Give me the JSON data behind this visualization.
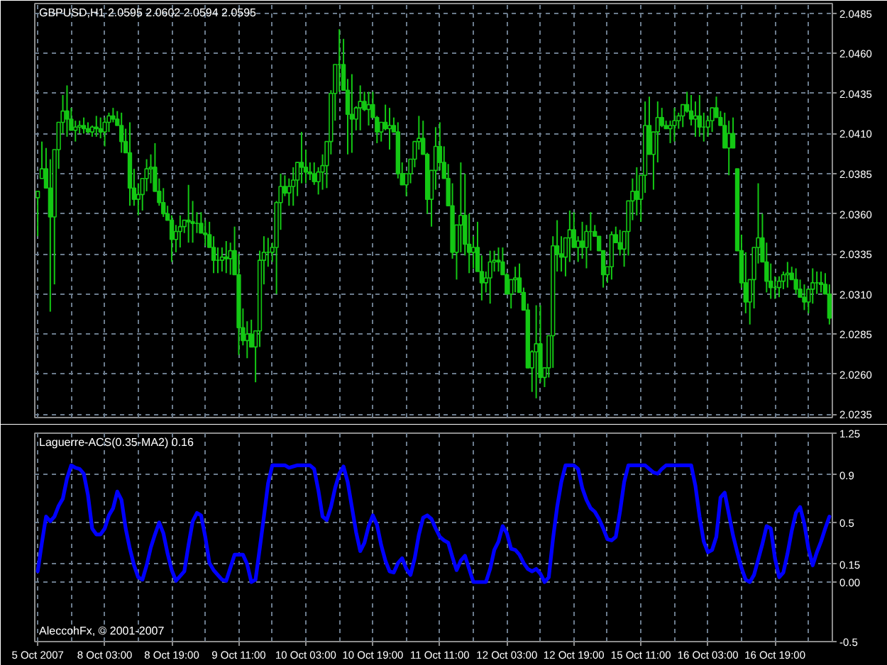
{
  "chart_data": [
    {
      "type": "candlestick",
      "title": "GBPUSD,H1 2.0595 2.0602 2.0594 2.0595",
      "color": "#14c814",
      "categories": [
        null,
        null,
        null,
        null,
        null,
        null,
        null,
        null,
        null,
        null,
        null,
        null,
        null,
        null,
        null,
        null,
        null,
        null,
        null,
        null,
        null,
        null,
        null,
        null,
        null,
        null,
        null,
        null,
        null,
        null,
        null,
        null,
        null,
        null,
        null,
        null,
        null,
        null,
        null,
        null,
        null,
        null,
        null,
        null,
        null,
        null,
        null,
        null,
        null,
        null,
        null,
        null,
        null,
        null,
        null,
        null,
        null,
        null,
        null,
        null,
        null,
        null,
        null,
        null,
        null,
        null,
        null,
        null,
        null,
        null,
        null,
        null,
        null,
        null,
        null,
        null,
        null,
        null,
        null,
        null,
        null,
        null,
        null,
        null,
        null,
        null,
        null,
        null,
        null,
        null,
        null,
        null,
        null,
        null,
        null,
        null,
        null,
        null,
        null,
        null,
        null,
        null,
        null,
        null,
        null,
        null,
        null,
        null,
        null,
        null,
        null,
        null,
        null,
        null,
        null,
        null,
        null,
        null,
        null,
        null,
        null,
        null,
        null,
        null,
        null,
        null,
        null,
        null,
        null,
        null,
        null,
        null,
        null,
        null,
        null,
        null,
        null,
        null,
        null,
        null,
        null,
        null,
        null,
        null,
        null,
        null,
        null,
        null,
        null,
        null,
        null,
        null,
        null,
        null,
        null,
        null,
        null,
        null,
        null,
        null,
        null,
        null,
        null,
        null,
        null,
        null,
        null,
        null,
        null,
        null,
        null,
        null,
        null,
        null,
        null,
        null,
        null,
        null,
        null,
        null,
        null,
        null,
        null,
        null,
        null,
        null,
        null,
        null,
        null,
        null
      ],
      "ohlc": [
        [
          2.037,
          2.0374,
          2.0346,
          2.0374
        ],
        [
          2.0382,
          2.0405,
          2.0382,
          2.0388
        ],
        [
          2.0388,
          2.0401,
          2.0376,
          2.0376
        ],
        [
          2.0376,
          2.0394,
          2.0299,
          2.0358
        ],
        [
          2.0358,
          2.04,
          2.0316,
          2.04
        ],
        [
          2.04,
          2.0417,
          2.0388,
          2.0417
        ],
        [
          2.0417,
          2.0434,
          2.041,
          2.0424
        ],
        [
          2.0424,
          2.044,
          2.0408,
          2.0419
        ],
        [
          2.0419,
          2.0426,
          2.0412,
          2.0412
        ],
        [
          2.0412,
          2.0418,
          2.0405,
          2.0414
        ],
        [
          2.0414,
          2.0418,
          2.041,
          2.0415
        ],
        [
          2.0415,
          2.042,
          2.041,
          2.0413
        ],
        [
          2.0413,
          2.0417,
          2.041,
          2.0411
        ],
        [
          2.0411,
          2.0415,
          2.0408,
          2.0414
        ],
        [
          2.0414,
          2.0421,
          2.0408,
          2.0413
        ],
        [
          2.0413,
          2.042,
          2.0407,
          2.0411
        ],
        [
          2.0411,
          2.042,
          2.0402,
          2.0417
        ],
        [
          2.0417,
          2.0423,
          2.0411,
          2.0421
        ],
        [
          2.0421,
          2.0426,
          2.0417,
          2.0419
        ],
        [
          2.0419,
          2.0424,
          2.0415,
          2.0415
        ],
        [
          2.0415,
          2.0423,
          2.0398,
          2.0405
        ],
        [
          2.0405,
          2.0413,
          2.0398,
          2.0398
        ],
        [
          2.0398,
          2.0417,
          2.0365,
          2.0376
        ],
        [
          2.0376,
          2.0388,
          2.0365,
          2.0369
        ],
        [
          2.0369,
          2.0379,
          2.0359,
          2.0372
        ],
        [
          2.0372,
          2.0382,
          2.0362,
          2.0382
        ],
        [
          2.0382,
          2.0394,
          2.0374,
          2.0388
        ],
        [
          2.0388,
          2.0397,
          2.0379,
          2.0389
        ],
        [
          2.0389,
          2.0404,
          2.0374,
          2.0374
        ],
        [
          2.0374,
          2.0382,
          2.0365,
          2.0367
        ],
        [
          2.0367,
          2.0376,
          2.0358,
          2.036
        ],
        [
          2.036,
          2.0365,
          2.0356,
          2.0356
        ],
        [
          2.0356,
          2.0359,
          2.033,
          2.0344
        ],
        [
          2.0344,
          2.0353,
          2.0336,
          2.0349
        ],
        [
          2.0349,
          2.0359,
          2.0339,
          2.0352
        ],
        [
          2.0352,
          2.0356,
          2.0348,
          2.0356
        ],
        [
          2.0356,
          2.0378,
          2.0342,
          2.0355
        ],
        [
          2.0355,
          2.0368,
          2.0342,
          2.0354
        ],
        [
          2.0354,
          2.0361,
          2.0348,
          2.0354
        ],
        [
          2.0354,
          2.0361,
          2.0348,
          2.0348
        ],
        [
          2.0348,
          2.0356,
          2.034,
          2.0347
        ],
        [
          2.0347,
          2.0355,
          2.0339,
          2.0339
        ],
        [
          2.0339,
          2.0346,
          2.0323,
          2.0331
        ],
        [
          2.0331,
          2.0339,
          2.0323,
          2.0331
        ],
        [
          2.0331,
          2.0339,
          2.0324,
          2.0333
        ],
        [
          2.0333,
          2.0343,
          2.0323,
          2.0332
        ],
        [
          2.0332,
          2.0342,
          2.0322,
          2.0337
        ],
        [
          2.0337,
          2.0352,
          2.0322,
          2.0322
        ],
        [
          2.0322,
          2.0335,
          2.0272,
          2.0289
        ],
        [
          2.0289,
          2.0301,
          2.0278,
          2.0281
        ],
        [
          2.0281,
          2.0293,
          2.027,
          2.0285
        ],
        [
          2.0285,
          2.0294,
          2.0277,
          2.0277
        ],
        [
          2.0277,
          2.0287,
          2.0255,
          2.0287
        ],
        [
          2.0287,
          2.0337,
          2.0277,
          2.0331
        ],
        [
          2.0331,
          2.0346,
          2.0316,
          2.0336
        ],
        [
          2.0336,
          2.0345,
          2.0327,
          2.0336
        ],
        [
          2.0336,
          2.0342,
          2.033,
          2.0339
        ],
        [
          2.0339,
          2.0368,
          2.031,
          2.0367
        ],
        [
          2.0367,
          2.0385,
          2.035,
          2.0377
        ],
        [
          2.0377,
          2.0384,
          2.0371,
          2.0373
        ],
        [
          2.0373,
          2.0382,
          2.0365,
          2.0377
        ],
        [
          2.0377,
          2.0389,
          2.0365,
          2.0381
        ],
        [
          2.0381,
          2.0392,
          2.0371,
          2.0392
        ],
        [
          2.0392,
          2.0411,
          2.0379,
          2.0389
        ],
        [
          2.0389,
          2.04,
          2.0379,
          2.0386
        ],
        [
          2.0386,
          2.0392,
          2.0381,
          2.0385
        ],
        [
          2.0385,
          2.0392,
          2.0378,
          2.038
        ],
        [
          2.038,
          2.0389,
          2.0372,
          2.0386
        ],
        [
          2.0386,
          2.0397,
          2.0375,
          2.039
        ],
        [
          2.039,
          2.0405,
          2.0376,
          2.0405
        ],
        [
          2.0405,
          2.0437,
          2.0397,
          2.0435
        ],
        [
          2.0435,
          2.0453,
          2.0418,
          2.0453
        ],
        [
          2.0453,
          2.0475,
          2.0436,
          2.0453
        ],
        [
          2.0453,
          2.0469,
          2.0437,
          2.0437
        ],
        [
          2.0437,
          2.0444,
          2.0397,
          2.0422
        ],
        [
          2.0422,
          2.0447,
          2.0398,
          2.0419
        ],
        [
          2.0419,
          2.0427,
          2.0412,
          2.0426
        ],
        [
          2.0426,
          2.044,
          2.0412,
          2.043
        ],
        [
          2.043,
          2.0436,
          2.0424,
          2.0425
        ],
        [
          2.0425,
          2.0436,
          2.0415,
          2.0428
        ],
        [
          2.0428,
          2.0436,
          2.042,
          2.042
        ],
        [
          2.042,
          2.0421,
          2.0404,
          2.0411
        ],
        [
          2.0411,
          2.0417,
          2.0405,
          2.0417
        ],
        [
          2.0417,
          2.0428,
          2.0412,
          2.0413
        ],
        [
          2.0413,
          2.0426,
          2.04,
          2.0415
        ],
        [
          2.0415,
          2.042,
          2.0411,
          2.0411
        ],
        [
          2.0411,
          2.0417,
          2.0382,
          2.0385
        ],
        [
          2.0385,
          2.0392,
          2.0378,
          2.0378
        ],
        [
          2.0378,
          2.0385,
          2.0371,
          2.0385
        ],
        [
          2.0385,
          2.0394,
          2.0379,
          2.0394
        ],
        [
          2.0394,
          2.0405,
          2.0389,
          2.0405
        ],
        [
          2.0405,
          2.0421,
          2.04,
          2.0407
        ],
        [
          2.0407,
          2.0418,
          2.0397,
          2.0397
        ],
        [
          2.0397,
          2.0398,
          2.036,
          2.0369
        ],
        [
          2.0369,
          2.0387,
          2.0352,
          2.0387
        ],
        [
          2.0387,
          2.0414,
          2.0375,
          2.0402
        ],
        [
          2.0402,
          2.0417,
          2.0387,
          2.0392
        ],
        [
          2.0392,
          2.0402,
          2.0382,
          2.0382
        ],
        [
          2.0382,
          2.0391,
          2.0365,
          2.0365
        ],
        [
          2.0365,
          2.0379,
          2.0332,
          2.0336
        ],
        [
          2.0336,
          2.0353,
          2.0319,
          2.0353
        ],
        [
          2.0353,
          2.0392,
          2.0336,
          2.0359
        ],
        [
          2.0359,
          2.0385,
          2.0334,
          2.0341
        ],
        [
          2.0341,
          2.036,
          2.0323,
          2.0336
        ],
        [
          2.0336,
          2.0346,
          2.0326,
          2.0339
        ],
        [
          2.0339,
          2.0355,
          2.0324,
          2.0324
        ],
        [
          2.0324,
          2.0334,
          2.0306,
          2.0317
        ],
        [
          2.0317,
          2.0324,
          2.0311,
          2.032
        ],
        [
          2.032,
          2.0337,
          2.0304,
          2.033
        ],
        [
          2.033,
          2.0337,
          2.0324,
          2.0331
        ],
        [
          2.0331,
          2.0339,
          2.0324,
          2.033
        ],
        [
          2.033,
          2.0339,
          2.0322,
          2.0322
        ],
        [
          2.0322,
          2.0323,
          2.031,
          2.031
        ],
        [
          2.031,
          2.0319,
          2.0301,
          2.0319
        ],
        [
          2.0319,
          2.0327,
          2.0311,
          2.032
        ],
        [
          2.032,
          2.0329,
          2.0311,
          2.0311
        ],
        [
          2.0311,
          2.0314,
          2.03,
          2.03
        ],
        [
          2.03,
          2.0304,
          2.0264,
          2.0264
        ],
        [
          2.0264,
          2.0275,
          2.0249,
          2.0274
        ],
        [
          2.0274,
          2.0303,
          2.0245,
          2.0279
        ],
        [
          2.0279,
          2.0303,
          2.0255,
          2.0258
        ],
        [
          2.0258,
          2.0264,
          2.0252,
          2.0264
        ],
        [
          2.0264,
          2.0284,
          2.0258,
          2.0284
        ],
        [
          2.0284,
          2.0346,
          2.0264,
          2.034
        ],
        [
          2.034,
          2.0356,
          2.0324,
          2.0335
        ],
        [
          2.0335,
          2.0346,
          2.0324,
          2.0333
        ],
        [
          2.0333,
          2.0345,
          2.0321,
          2.0345
        ],
        [
          2.0345,
          2.0362,
          2.033,
          2.035
        ],
        [
          2.035,
          2.0361,
          2.0339,
          2.0339
        ],
        [
          2.0339,
          2.0346,
          2.033,
          2.0343
        ],
        [
          2.0343,
          2.0355,
          2.0332,
          2.0339
        ],
        [
          2.0339,
          2.0353,
          2.0326,
          2.0349
        ],
        [
          2.0349,
          2.0361,
          2.0337,
          2.0349
        ],
        [
          2.0349,
          2.0353,
          2.0346,
          2.0346
        ],
        [
          2.0346,
          2.0346,
          2.0337,
          2.0337
        ],
        [
          2.0337,
          2.0337,
          2.0314,
          2.0322
        ],
        [
          2.0322,
          2.0327,
          2.0317,
          2.0327
        ],
        [
          2.0327,
          2.0349,
          2.0319,
          2.0347
        ],
        [
          2.0347,
          2.0352,
          2.0342,
          2.0342
        ],
        [
          2.0342,
          2.035,
          2.0334,
          2.0338
        ],
        [
          2.0338,
          2.0349,
          2.0327,
          2.0349
        ],
        [
          2.0349,
          2.0368,
          2.0334,
          2.0368
        ],
        [
          2.0368,
          2.0382,
          2.0356,
          2.0374
        ],
        [
          2.0374,
          2.0389,
          2.0359,
          2.0369
        ],
        [
          2.0369,
          2.0384,
          2.0355,
          2.0384
        ],
        [
          2.0384,
          2.043,
          2.0373,
          2.0415
        ],
        [
          2.0415,
          2.0433,
          2.0397,
          2.0397
        ],
        [
          2.0397,
          2.0411,
          2.0375,
          2.0411
        ],
        [
          2.0411,
          2.043,
          2.0392,
          2.042
        ],
        [
          2.042,
          2.0426,
          2.0414,
          2.0415
        ],
        [
          2.0415,
          2.0418,
          2.0413,
          2.0413
        ],
        [
          2.0413,
          2.0418,
          2.0404,
          2.0415
        ],
        [
          2.0415,
          2.0426,
          2.0405,
          2.0418
        ],
        [
          2.0418,
          2.0423,
          2.0413,
          2.0421
        ],
        [
          2.0421,
          2.0428,
          2.0414,
          2.0428
        ],
        [
          2.0428,
          2.0436,
          2.0423,
          2.0424
        ],
        [
          2.0424,
          2.0434,
          2.0415,
          2.0419
        ],
        [
          2.0419,
          2.043,
          2.0408,
          2.0421
        ],
        [
          2.0421,
          2.0434,
          2.0408,
          2.0414
        ],
        [
          2.0414,
          2.0423,
          2.0405,
          2.0414
        ],
        [
          2.0414,
          2.0421,
          2.0408,
          2.0418
        ],
        [
          2.0418,
          2.0426,
          2.0411,
          2.0426
        ],
        [
          2.0426,
          2.0433,
          2.042,
          2.042
        ],
        [
          2.042,
          2.0424,
          2.0415,
          2.0415
        ],
        [
          2.0415,
          2.0423,
          2.0401,
          2.0401
        ],
        [
          2.0401,
          2.0418,
          2.0384,
          2.041
        ],
        [
          2.041,
          2.042,
          2.0401,
          2.0401
        ],
        [
          2.0388,
          2.0388,
          2.0337,
          2.0337
        ],
        [
          2.0337,
          2.0347,
          2.0314,
          2.0317
        ],
        [
          2.0317,
          2.0336,
          2.0298,
          2.0305
        ],
        [
          2.0305,
          2.0319,
          2.0291,
          2.0319
        ],
        [
          2.0319,
          2.0339,
          2.0301,
          2.0339
        ],
        [
          2.0339,
          2.0379,
          2.0329,
          2.0345
        ],
        [
          2.0345,
          2.036,
          2.033,
          2.033
        ],
        [
          2.033,
          2.0342,
          2.0311,
          2.0318
        ],
        [
          2.0318,
          2.0329,
          2.0307,
          2.0314
        ],
        [
          2.0314,
          2.0321,
          2.0307,
          2.0314
        ],
        [
          2.0314,
          2.0321,
          2.0308,
          2.0318
        ],
        [
          2.0318,
          2.0324,
          2.0313,
          2.0322
        ],
        [
          2.0322,
          2.033,
          2.0314,
          2.0323
        ],
        [
          2.0323,
          2.0327,
          2.0319,
          2.0319
        ],
        [
          2.0319,
          2.0326,
          2.031,
          2.0313
        ],
        [
          2.0313,
          2.0319,
          2.0308,
          2.0308
        ],
        [
          2.0308,
          2.0316,
          2.03,
          2.0305
        ],
        [
          2.0305,
          2.0313,
          2.0298,
          2.0313
        ],
        [
          2.0313,
          2.0326,
          2.0304,
          2.0317
        ],
        [
          2.0317,
          2.0324,
          2.031,
          2.0317
        ],
        [
          2.0317,
          2.0324,
          2.0311,
          2.0316
        ],
        [
          2.0316,
          2.0323,
          2.031,
          2.031
        ],
        [
          2.031,
          2.0316,
          2.0291,
          2.0295
        ]
      ],
      "ylim": [
        2.0233,
        2.0491
      ],
      "yticks": [
        2.0485,
        {
          "value": 2.046,
          "label": "2.0460"
        },
        2.0435,
        {
          "value": 2.041,
          "label": "2.0410"
        },
        2.0385,
        {
          "value": 2.036,
          "label": "2.0360"
        },
        2.0335,
        {
          "value": 2.031,
          "label": "2.0310"
        },
        2.0285,
        {
          "value": 2.026,
          "label": "2.0260"
        },
        2.0235
      ],
      "grid": true,
      "tick_labels": "y"
    },
    {
      "type": "line",
      "title": "Laguerre-ACS(0.35-MA2) 0.16",
      "categories": [
        "5 Oct 2007",
        null,
        null,
        null,
        null,
        null,
        null,
        null,
        null,
        null,
        null,
        null,
        null,
        null,
        null,
        null,
        "8 Oct 03:00",
        null,
        null,
        null,
        null,
        null,
        null,
        null,
        null,
        null,
        null,
        null,
        null,
        null,
        null,
        null,
        "8 Oct 19:00",
        null,
        null,
        null,
        null,
        null,
        null,
        null,
        null,
        null,
        null,
        null,
        null,
        null,
        null,
        null,
        "9 Oct 11:00",
        null,
        null,
        null,
        null,
        null,
        null,
        null,
        null,
        null,
        null,
        null,
        null,
        null,
        null,
        null,
        "10 Oct 03:00",
        null,
        null,
        null,
        null,
        null,
        null,
        null,
        null,
        null,
        null,
        null,
        null,
        null,
        null,
        null,
        "10 Oct 19:00",
        null,
        null,
        null,
        null,
        null,
        null,
        null,
        null,
        null,
        null,
        null,
        null,
        null,
        null,
        null,
        "11 Oct 11:00",
        null,
        null,
        null,
        null,
        null,
        null,
        null,
        null,
        null,
        null,
        null,
        null,
        null,
        null,
        null,
        "12 Oct 03:00",
        null,
        null,
        null,
        null,
        null,
        null,
        null,
        null,
        null,
        null,
        null,
        null,
        null,
        null,
        null,
        "12 Oct 19:00",
        null,
        null,
        null,
        null,
        null,
        null,
        null,
        null,
        null,
        null,
        null,
        null,
        null,
        null,
        null,
        "15 Oct 11:00",
        null,
        null,
        null,
        null,
        null,
        null,
        null,
        null,
        null,
        null,
        null,
        null,
        null,
        null,
        null,
        "16 Oct 03:00",
        null,
        null,
        null,
        null,
        null,
        null,
        null,
        null,
        null,
        null,
        null,
        null,
        null,
        null,
        null,
        "16 Oct 19:00",
        null,
        null,
        null,
        null,
        null,
        null,
        null,
        null,
        null,
        null,
        null,
        null,
        null
      ],
      "series": [
        {
          "color": "#0000ff",
          "values": [
            0.09,
            0.33,
            0.55,
            0.51,
            0.55,
            0.64,
            0.7,
            0.87,
            0.98,
            0.96,
            0.95,
            0.91,
            0.73,
            0.45,
            0.4,
            0.4,
            0.45,
            0.56,
            0.62,
            0.76,
            0.69,
            0.45,
            0.28,
            0.14,
            0.04,
            0.02,
            0.14,
            0.29,
            0.4,
            0.5,
            0.41,
            0.24,
            0.1,
            0.01,
            0.05,
            0.09,
            0.31,
            0.51,
            0.58,
            0.56,
            0.38,
            0.16,
            0.1,
            0.06,
            0.02,
            0.01,
            0.12,
            0.23,
            0.23,
            0.23,
            0.15,
            0.0,
            0.02,
            0.28,
            0.55,
            0.83,
            0.98,
            0.98,
            0.98,
            0.98,
            0.96,
            0.97,
            0.98,
            0.98,
            0.98,
            0.98,
            0.95,
            0.77,
            0.55,
            0.52,
            0.63,
            0.79,
            0.91,
            0.97,
            0.84,
            0.63,
            0.42,
            0.26,
            0.33,
            0.47,
            0.56,
            0.48,
            0.31,
            0.18,
            0.09,
            0.08,
            0.16,
            0.2,
            0.11,
            0.06,
            0.2,
            0.4,
            0.54,
            0.56,
            0.53,
            0.45,
            0.38,
            0.35,
            0.33,
            0.21,
            0.1,
            0.18,
            0.22,
            0.11,
            0.0,
            0.0,
            0.0,
            0.0,
            0.11,
            0.27,
            0.34,
            0.47,
            0.41,
            0.28,
            0.27,
            0.23,
            0.16,
            0.11,
            0.09,
            0.11,
            0.07,
            0.0,
            0.04,
            0.36,
            0.63,
            0.84,
            0.98,
            0.98,
            0.98,
            0.95,
            0.79,
            0.69,
            0.62,
            0.59,
            0.53,
            0.45,
            0.36,
            0.35,
            0.38,
            0.59,
            0.84,
            0.98,
            0.98,
            0.98,
            0.98,
            0.98,
            0.95,
            0.92,
            0.91,
            0.95,
            0.98,
            0.98,
            0.98,
            0.98,
            0.98,
            0.98,
            0.98,
            0.81,
            0.55,
            0.34,
            0.25,
            0.27,
            0.38,
            0.71,
            0.75,
            0.57,
            0.39,
            0.25,
            0.12,
            0.02,
            0.0,
            0.06,
            0.19,
            0.32,
            0.47,
            0.45,
            0.2,
            0.04,
            0.08,
            0.24,
            0.43,
            0.58,
            0.63,
            0.49,
            0.28,
            0.14,
            0.25,
            0.34,
            0.45,
            0.55
          ]
        }
      ],
      "ylim": [
        -0.5,
        1.25
      ],
      "yticks": [
        1.25,
        0.9,
        0.5,
        0.15,
        {
          "value": 0,
          "label": "0.00"
        },
        -0.5
      ],
      "grid": true,
      "annotations": [
        "AleccohFx, © 2001-2007"
      ]
    }
  ]
}
